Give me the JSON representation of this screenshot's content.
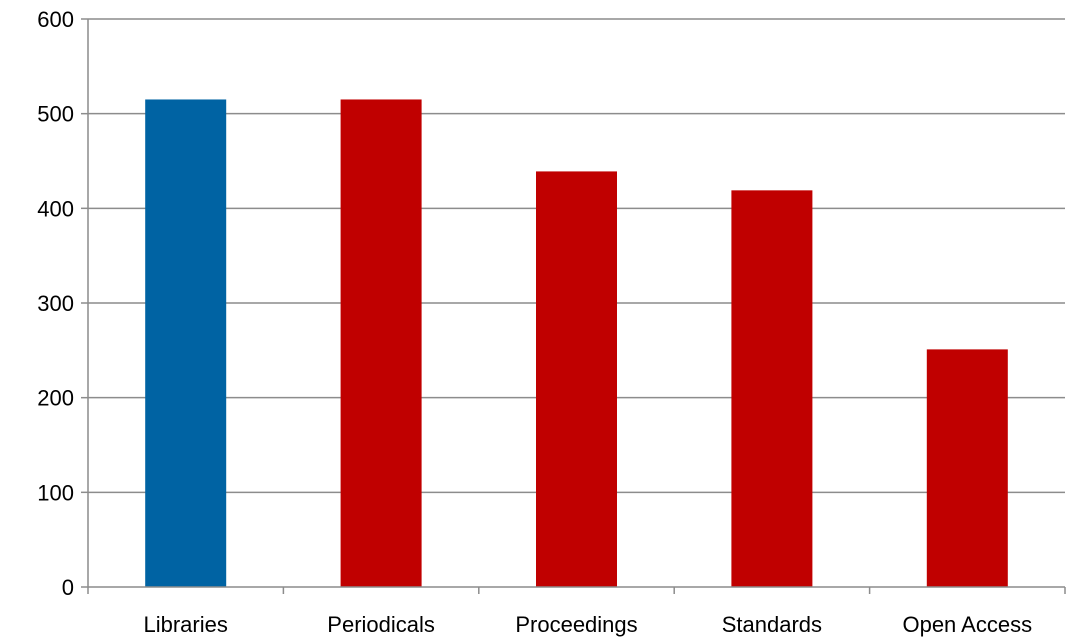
{
  "chart_data": {
    "type": "bar",
    "title": "",
    "xlabel": "",
    "ylabel": "",
    "categories": [
      "Libraries",
      "Periodicals",
      "Proceedings",
      "Standards",
      "Open Access"
    ],
    "values": [
      515,
      515,
      439,
      419,
      251
    ],
    "bar_colors": [
      "#0063a3",
      "#c00000",
      "#c00000",
      "#c00000",
      "#c00000"
    ],
    "ylim": [
      0,
      600
    ],
    "yticks": [
      0,
      100,
      200,
      300,
      400,
      500,
      600
    ],
    "grid": true,
    "legend": "none"
  }
}
